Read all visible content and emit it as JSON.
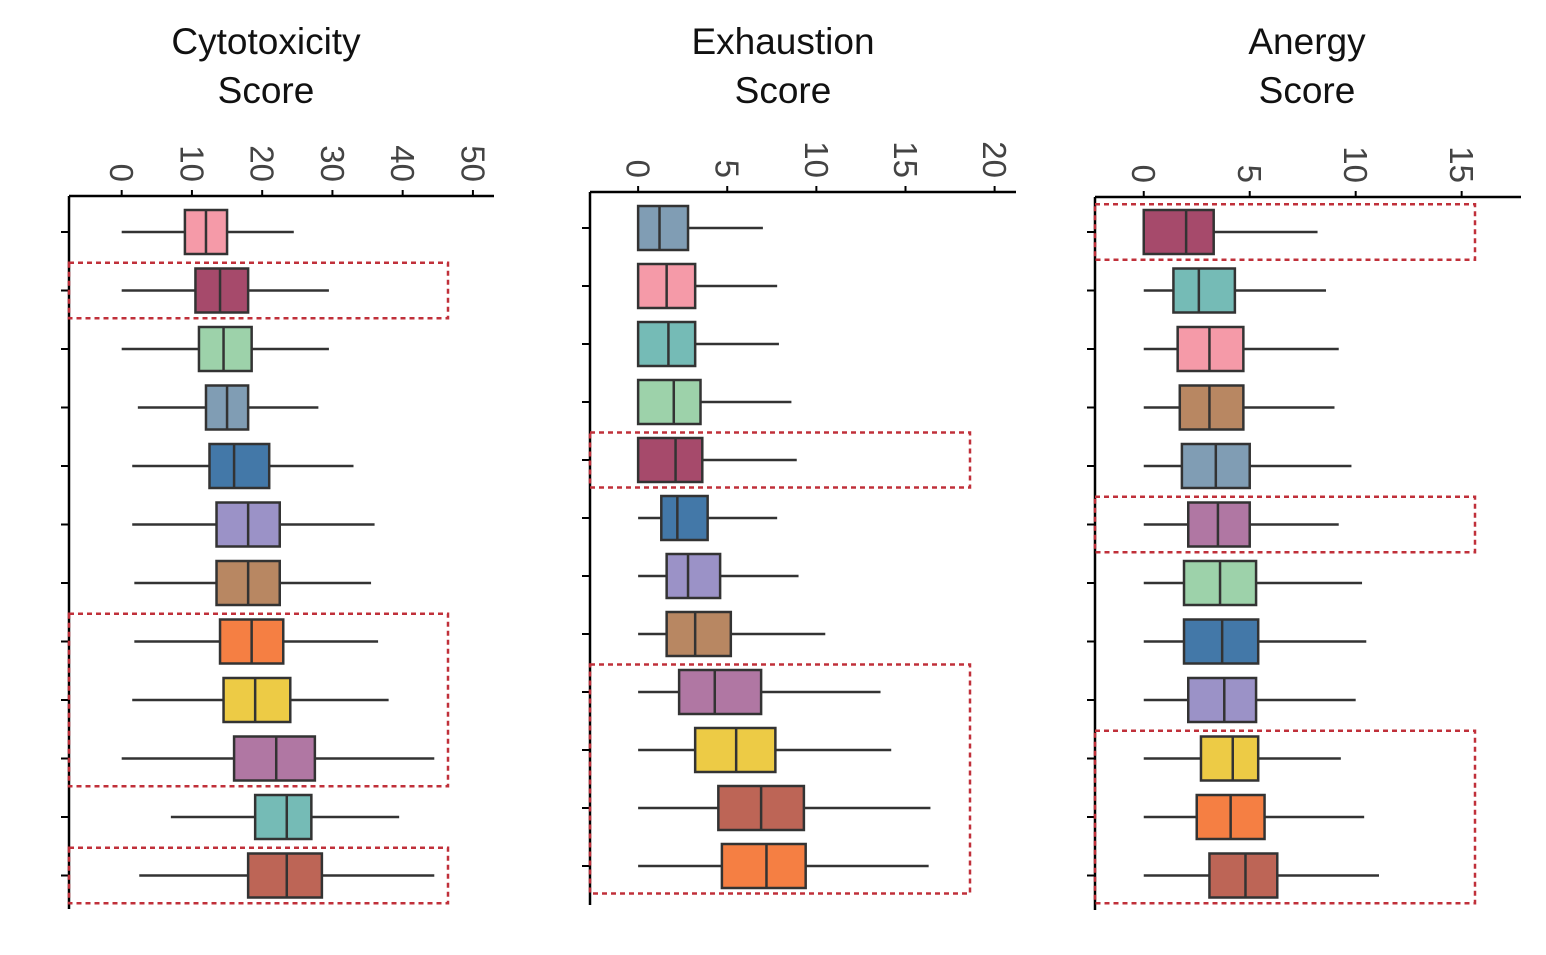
{
  "chart_data": [
    {
      "type": "boxplot",
      "orientation": "horizontal",
      "title_lines": [
        "Cytotoxicity",
        "Score"
      ],
      "xlim": [
        -7.5,
        53
      ],
      "ticks": [
        0,
        10,
        20,
        30,
        40,
        50
      ],
      "tick_labels": [
        "0",
        "10",
        "20",
        "30",
        "40",
        "50"
      ],
      "highlight_rows": [
        [
          2,
          2
        ],
        [
          8,
          10
        ],
        [
          12,
          12
        ]
      ],
      "boxes": [
        {
          "whisker_low": 0,
          "q1": 9,
          "median": 12,
          "q3": 15,
          "whisker_high": 24.5,
          "color": "#F59AA8"
        },
        {
          "whisker_low": 0,
          "q1": 10.5,
          "median": 14,
          "q3": 18,
          "whisker_high": 29.5,
          "color": "#A64A6B"
        },
        {
          "whisker_low": 0,
          "q1": 11,
          "median": 14.5,
          "q3": 18.5,
          "whisker_high": 29.5,
          "color": "#9DD2AA"
        },
        {
          "whisker_low": 2.3,
          "q1": 12,
          "median": 15,
          "q3": 18,
          "whisker_high": 28,
          "color": "#809DB4"
        },
        {
          "whisker_low": 1.5,
          "q1": 12.5,
          "median": 16,
          "q3": 21,
          "whisker_high": 33,
          "color": "#4378A8"
        },
        {
          "whisker_low": 1.5,
          "q1": 13.5,
          "median": 18,
          "q3": 22.5,
          "whisker_high": 36,
          "color": "#9B92C7"
        },
        {
          "whisker_low": 1.8,
          "q1": 13.5,
          "median": 18,
          "q3": 22.5,
          "whisker_high": 35.5,
          "color": "#B88762"
        },
        {
          "whisker_low": 1.8,
          "q1": 14,
          "median": 18.5,
          "q3": 23,
          "whisker_high": 36.5,
          "color": "#F57F43"
        },
        {
          "whisker_low": 1.5,
          "q1": 14.5,
          "median": 19,
          "q3": 24,
          "whisker_high": 38,
          "color": "#EDCB45"
        },
        {
          "whisker_low": 0,
          "q1": 16,
          "median": 22,
          "q3": 27.5,
          "whisker_high": 44.5,
          "color": "#B077A3"
        },
        {
          "whisker_low": 7,
          "q1": 19,
          "median": 23.5,
          "q3": 27,
          "whisker_high": 39.5,
          "color": "#75BBB6"
        },
        {
          "whisker_low": 2.5,
          "q1": 18,
          "median": 23.5,
          "q3": 28.5,
          "whisker_high": 44.5,
          "color": "#BD6556"
        }
      ]
    },
    {
      "type": "boxplot",
      "orientation": "horizontal",
      "title_lines": [
        "Exhaustion",
        "Score"
      ],
      "xlim": [
        -2.7,
        21.2
      ],
      "ticks": [
        0,
        5,
        10,
        15,
        20
      ],
      "tick_labels": [
        "0",
        "5",
        "10",
        "15",
        "20"
      ],
      "highlight_rows": [
        [
          5,
          5
        ],
        [
          9,
          12
        ]
      ],
      "boxes": [
        {
          "whisker_low": 0,
          "q1": 0,
          "median": 1.2,
          "q3": 2.8,
          "whisker_high": 7,
          "color": "#809DB4"
        },
        {
          "whisker_low": 0,
          "q1": 0,
          "median": 1.6,
          "q3": 3.2,
          "whisker_high": 7.8,
          "color": "#F59AA8"
        },
        {
          "whisker_low": 0,
          "q1": 0,
          "median": 1.7,
          "q3": 3.2,
          "whisker_high": 7.9,
          "color": "#75BBB6"
        },
        {
          "whisker_low": 0,
          "q1": 0,
          "median": 2,
          "q3": 3.5,
          "whisker_high": 8.6,
          "color": "#9DD2AA"
        },
        {
          "whisker_low": 0,
          "q1": 0,
          "median": 2.1,
          "q3": 3.6,
          "whisker_high": 8.9,
          "color": "#A64A6B"
        },
        {
          "whisker_low": 0,
          "q1": 1.3,
          "median": 2.2,
          "q3": 3.9,
          "whisker_high": 7.8,
          "color": "#4378A8"
        },
        {
          "whisker_low": 0,
          "q1": 1.6,
          "median": 2.8,
          "q3": 4.6,
          "whisker_high": 9,
          "color": "#9B92C7"
        },
        {
          "whisker_low": 0,
          "q1": 1.6,
          "median": 3.2,
          "q3": 5.2,
          "whisker_high": 10.5,
          "color": "#B88762"
        },
        {
          "whisker_low": 0,
          "q1": 2.3,
          "median": 4.3,
          "q3": 6.9,
          "whisker_high": 13.6,
          "color": "#B077A3"
        },
        {
          "whisker_low": 0,
          "q1": 3.2,
          "median": 5.5,
          "q3": 7.7,
          "whisker_high": 14.2,
          "color": "#EDCB45"
        },
        {
          "whisker_low": 0,
          "q1": 4.5,
          "median": 6.9,
          "q3": 9.3,
          "whisker_high": 16.4,
          "color": "#BD6556"
        },
        {
          "whisker_low": 0,
          "q1": 4.7,
          "median": 7.2,
          "q3": 9.4,
          "whisker_high": 16.3,
          "color": "#F57F43"
        }
      ]
    },
    {
      "type": "boxplot",
      "orientation": "horizontal",
      "title_lines": [
        "Anergy",
        "Score"
      ],
      "xlim": [
        -2.3,
        17.8
      ],
      "ticks": [
        0,
        5,
        10,
        15
      ],
      "tick_labels": [
        "0",
        "5",
        "10",
        "15"
      ],
      "highlight_rows": [
        [
          1,
          1
        ],
        [
          6,
          6
        ],
        [
          10,
          12
        ]
      ],
      "boxes": [
        {
          "whisker_low": 0,
          "q1": 0,
          "median": 2,
          "q3": 3.3,
          "whisker_high": 8.2,
          "color": "#A64A6B"
        },
        {
          "whisker_low": 0,
          "q1": 1.4,
          "median": 2.6,
          "q3": 4.3,
          "whisker_high": 8.6,
          "color": "#75BBB6"
        },
        {
          "whisker_low": 0,
          "q1": 1.6,
          "median": 3.1,
          "q3": 4.7,
          "whisker_high": 9.2,
          "color": "#F59AA8"
        },
        {
          "whisker_low": 0,
          "q1": 1.7,
          "median": 3.1,
          "q3": 4.7,
          "whisker_high": 9,
          "color": "#B88762"
        },
        {
          "whisker_low": 0,
          "q1": 1.8,
          "median": 3.4,
          "q3": 5,
          "whisker_high": 9.8,
          "color": "#809DB4"
        },
        {
          "whisker_low": 0,
          "q1": 2.1,
          "median": 3.5,
          "q3": 5,
          "whisker_high": 9.2,
          "color": "#B077A3"
        },
        {
          "whisker_low": 0,
          "q1": 1.9,
          "median": 3.6,
          "q3": 5.3,
          "whisker_high": 10.3,
          "color": "#9DD2AA"
        },
        {
          "whisker_low": 0,
          "q1": 1.9,
          "median": 3.7,
          "q3": 5.4,
          "whisker_high": 10.5,
          "color": "#4378A8"
        },
        {
          "whisker_low": 0,
          "q1": 2.1,
          "median": 3.8,
          "q3": 5.3,
          "whisker_high": 10,
          "color": "#9B92C7"
        },
        {
          "whisker_low": 0,
          "q1": 2.7,
          "median": 4.2,
          "q3": 5.4,
          "whisker_high": 9.3,
          "color": "#EDCB45"
        },
        {
          "whisker_low": 0,
          "q1": 2.5,
          "median": 4.1,
          "q3": 5.7,
          "whisker_high": 10.4,
          "color": "#F57F43"
        },
        {
          "whisker_low": 0,
          "q1": 3.1,
          "median": 4.8,
          "q3": 6.3,
          "whisker_high": 11.1,
          "color": "#BD6556"
        }
      ]
    }
  ]
}
